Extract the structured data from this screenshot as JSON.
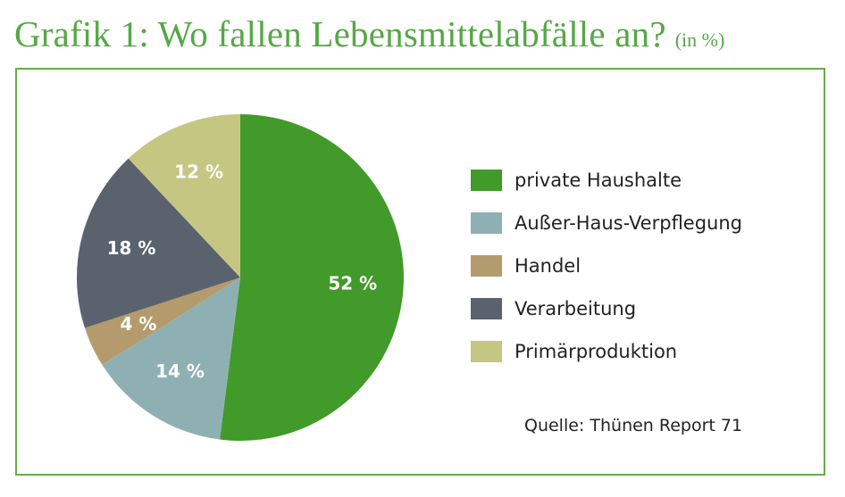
{
  "title": "Grafik 1: Wo fallen Lebensmittelabfälle an?",
  "unit_note": "(in %)",
  "source": "Quelle: Thünen Report 71",
  "chart_data": {
    "type": "pie",
    "title": "Grafik 1: Wo fallen Lebensmittelabfälle an?",
    "unit": "%",
    "start": "12 o'clock, clockwise",
    "slices": [
      {
        "name": "private Haushalte",
        "value": 52,
        "label": "52 %",
        "color": "#419a2a"
      },
      {
        "name": "Außer-Haus-Verpflegung",
        "value": 14,
        "label": "14 %",
        "color": "#8fb0b2"
      },
      {
        "name": "Handel",
        "value": 4,
        "label": "4 %",
        "color": "#b49b6d"
      },
      {
        "name": "Verarbeitung",
        "value": 18,
        "label": "18 %",
        "color": "#5a626e"
      },
      {
        "name": "Primärproduktion",
        "value": 12,
        "label": "12 %",
        "color": "#c5c682"
      }
    ],
    "legend_position": "right"
  }
}
